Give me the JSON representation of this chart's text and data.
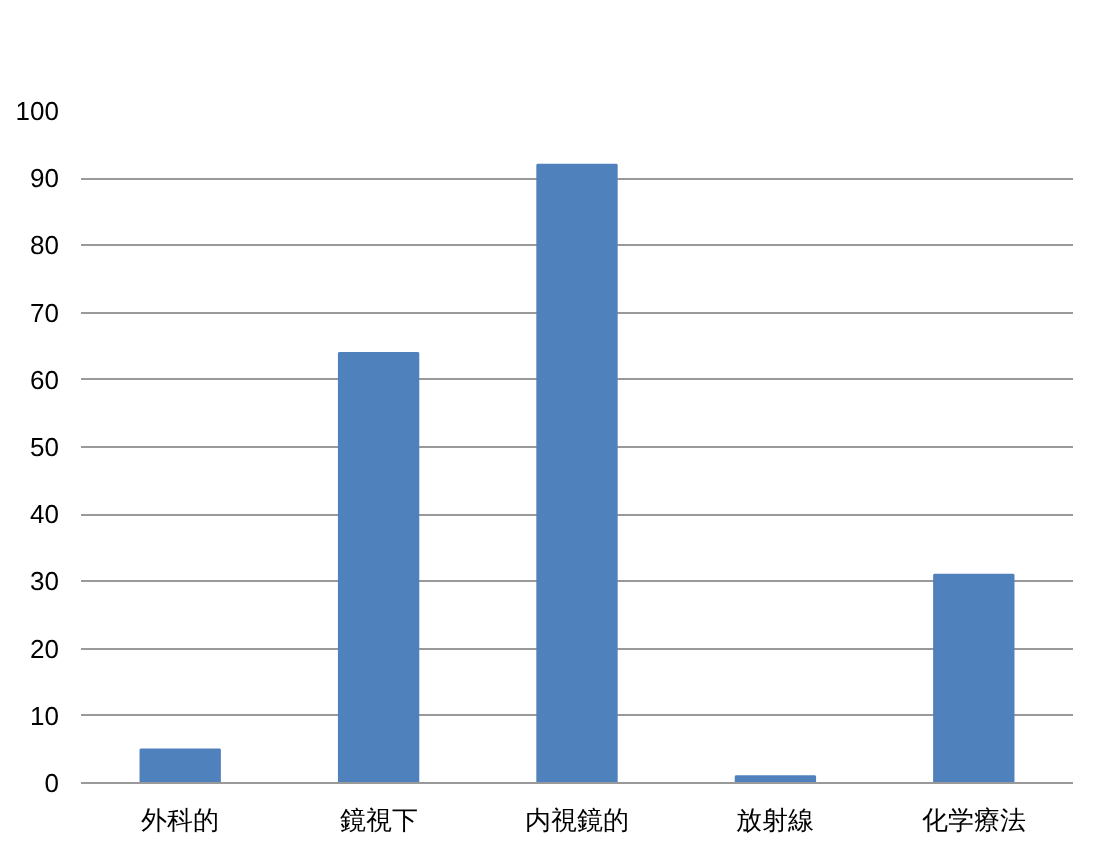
{
  "chart_data": {
    "type": "bar",
    "categories": [
      "外科的",
      "鏡視下",
      "内視鏡的",
      "放射線",
      "化学療法"
    ],
    "values": [
      5,
      64,
      92,
      1,
      31
    ],
    "color": "#4f81bd",
    "ylim": [
      0,
      100
    ],
    "yticks": [
      0,
      10,
      20,
      30,
      40,
      50,
      60,
      70,
      80,
      90,
      100
    ],
    "grid": "y"
  }
}
